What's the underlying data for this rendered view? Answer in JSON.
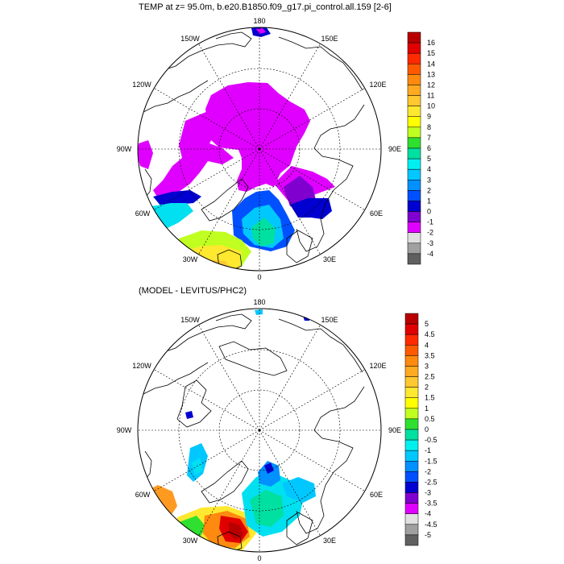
{
  "panels": [
    {
      "title": "TEMP at z=  95.0m, b.e20.B1850.f09_g17.pi_control.all.159 [2-6]",
      "colorbar": {
        "labels": [
          "16",
          "15",
          "14",
          "13",
          "12",
          "11",
          "10",
          "9",
          "8",
          "7",
          "6",
          "5",
          "4",
          "3",
          "2",
          "1",
          "0",
          "-1",
          "-2",
          "-3",
          "-4"
        ],
        "colors": [
          "#b80000",
          "#e00000",
          "#ff2a00",
          "#ff5a00",
          "#ff8a10",
          "#ffaa20",
          "#ffc830",
          "#ffe830",
          "#ffff00",
          "#c0ff20",
          "#30e030",
          "#00e0a0",
          "#00f0f0",
          "#00c8ff",
          "#0090ff",
          "#0050ff",
          "#0000d0",
          "#8000d0",
          "#e000ff",
          "#e0e0e0",
          "#a0a0a0",
          "#606060"
        ]
      }
    },
    {
      "title": "(MODEL - LEVITUS/PHC2)",
      "colorbar": {
        "labels": [
          "5",
          "4.5",
          "4",
          "3.5",
          "3",
          "2.5",
          "2",
          "1.5",
          "1",
          "0.5",
          "0",
          "-0.5",
          "-1",
          "-1.5",
          "-2",
          "-2.5",
          "-3",
          "-3.5",
          "-4",
          "-4.5",
          "-5"
        ],
        "colors": [
          "#b80000",
          "#e00000",
          "#ff2a00",
          "#ff5a00",
          "#ff8a10",
          "#ffaa20",
          "#ffc830",
          "#ffe830",
          "#ffff00",
          "#c0ff20",
          "#30e030",
          "#00e0a0",
          "#00f0f0",
          "#00c8ff",
          "#0090ff",
          "#0050ff",
          "#0000d0",
          "#8000d0",
          "#e000ff",
          "#e0e0e0",
          "#a0a0a0",
          "#606060"
        ]
      }
    }
  ],
  "lon_labels": [
    "180",
    "150E",
    "120E",
    "90E",
    "60E",
    "30E",
    "0",
    "30W",
    "60W",
    "90W",
    "120W",
    "150W"
  ]
}
